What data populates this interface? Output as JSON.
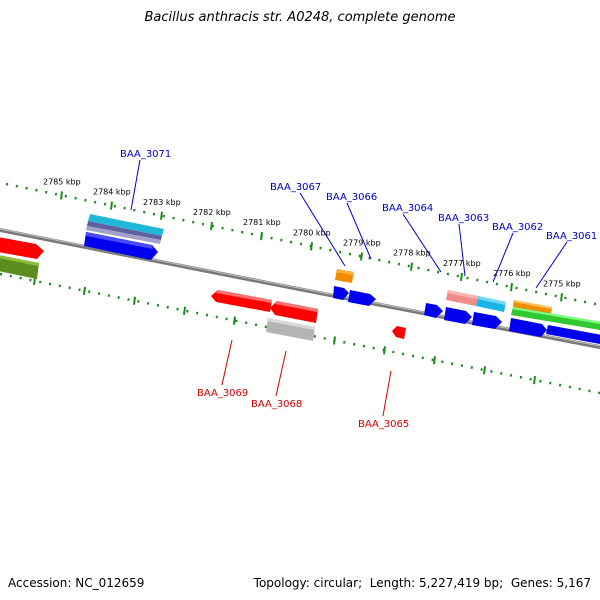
{
  "title": "Bacillus anthracis str. A0248, complete genome",
  "footer": {
    "accession_label": "Accession:",
    "accession": "NC_012659",
    "topology_label": "Topology:",
    "topology": "circular",
    "length_label": "Length:",
    "length": "5,227,419 bp",
    "genes_label": "Genes:",
    "genes": "5,167"
  },
  "colors": {
    "backbone": "#808080",
    "tick": "#1a8a1a",
    "forward_label": "#0000c8",
    "reverse_label": "#d00000",
    "red": "#ff0000",
    "blue": "#0000ee",
    "orange": "#f08c00",
    "cyan": "#1ab4e6",
    "pink": "#f08c8c",
    "grey": "#b4b4b4",
    "green": "#32c832",
    "olive": "#5a8c1e",
    "slate": "#6060a0"
  },
  "ticks": [
    {
      "label": "2785 kbp"
    },
    {
      "label": "2784 kbp"
    },
    {
      "label": "2783 kbp"
    },
    {
      "label": "2782 kbp"
    },
    {
      "label": "2781 kbp"
    },
    {
      "label": "2780 kbp"
    },
    {
      "label": "2779 kbp"
    },
    {
      "label": "2778 kbp"
    },
    {
      "label": "2777 kbp"
    },
    {
      "label": "2776 kbp"
    },
    {
      "label": "2775 kbp"
    }
  ],
  "forward_labels": [
    "BAA_3071",
    "BAA_3067",
    "BAA_3066",
    "BAA_3064",
    "BAA_3063",
    "BAA_3062",
    "BAA_3061"
  ],
  "reverse_labels": [
    "BAA_3069",
    "BAA_3068",
    "BAA_3065"
  ]
}
